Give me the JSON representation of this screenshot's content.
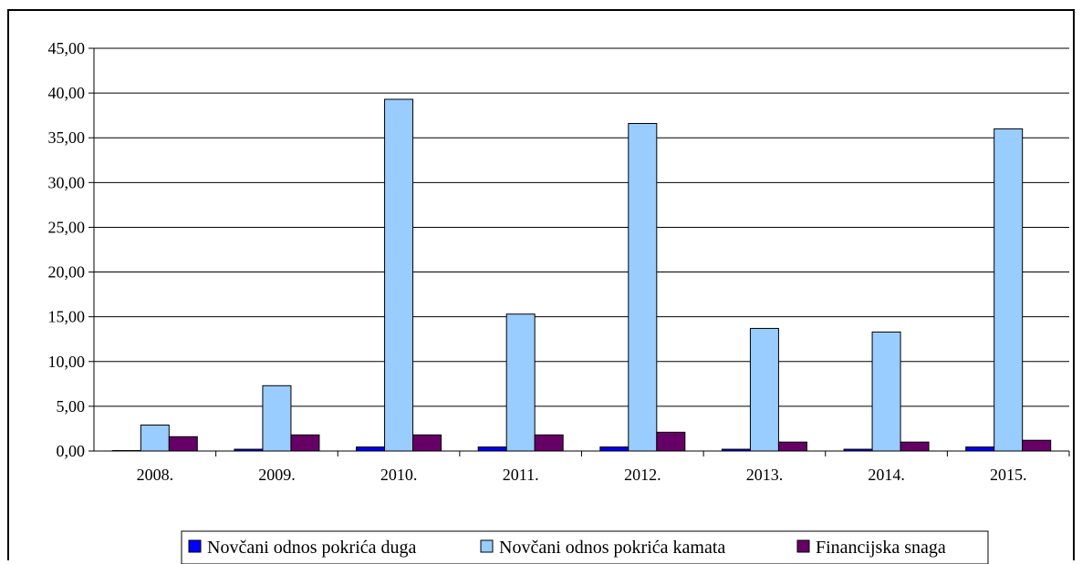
{
  "chart_data": {
    "type": "bar",
    "categories": [
      "2008.",
      "2009.",
      "2010.",
      "2011.",
      "2012.",
      "2013.",
      "2014.",
      "2015."
    ],
    "series": [
      {
        "name": "Novčani odnos pokrića duga",
        "color": "#0000ff",
        "values": [
          0.05,
          0.2,
          0.45,
          0.45,
          0.45,
          0.2,
          0.2,
          0.45
        ]
      },
      {
        "name": "Novčani odnos pokrića kamata",
        "color": "#99ccff",
        "values": [
          2.9,
          7.3,
          39.3,
          15.3,
          36.6,
          13.7,
          13.3,
          36.0
        ]
      },
      {
        "name": "Financijska snaga",
        "color": "#660066",
        "values": [
          1.6,
          1.8,
          1.8,
          1.8,
          2.1,
          1.0,
          1.0,
          1.2
        ]
      }
    ],
    "ylim": [
      0,
      45
    ],
    "yticks": [
      "0,00",
      "5,00",
      "10,00",
      "15,00",
      "20,00",
      "25,00",
      "30,00",
      "35,00",
      "40,00",
      "45,00"
    ],
    "grid": true,
    "legend_position": "bottom"
  }
}
